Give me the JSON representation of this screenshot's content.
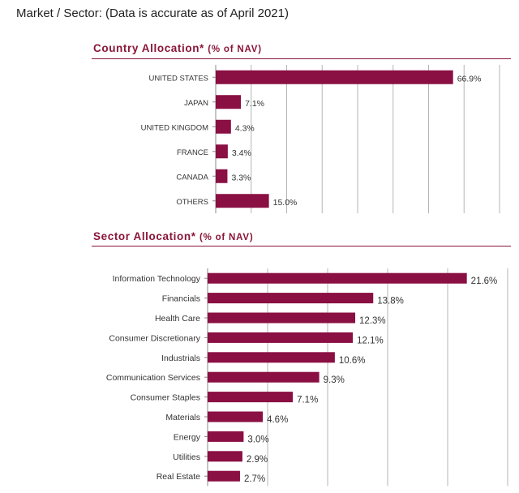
{
  "header": {
    "title": "Market / Sector: (Data is accurate as of April 2021)"
  },
  "colors": {
    "bar": "#8a0f43",
    "heading": "#8a1538",
    "grid": "#999999"
  },
  "chart_data": [
    {
      "type": "bar",
      "orientation": "horizontal",
      "title": "Country Allocation*",
      "title_unit": "(% of NAV)",
      "categories": [
        "UNITED STATES",
        "JAPAN",
        "UNITED KINGDOM",
        "FRANCE",
        "CANADA",
        "OTHERS"
      ],
      "values": [
        66.9,
        7.1,
        4.3,
        3.4,
        3.3,
        15.0
      ],
      "value_labels": [
        "66.9%",
        "7.1%",
        "4.3%",
        "3.4%",
        "3.3%",
        "15.0%"
      ],
      "xlim": [
        0,
        80
      ],
      "grid": true
    },
    {
      "type": "bar",
      "orientation": "horizontal",
      "title": "Sector Allocation*",
      "title_unit": "(% of NAV)",
      "categories": [
        "Information Technology",
        "Financials",
        "Health Care",
        "Consumer Discretionary",
        "Industrials",
        "Communication Services",
        "Consumer Staples",
        "Materials",
        "Energy",
        "Utilities",
        "Real Estate"
      ],
      "values": [
        21.6,
        13.8,
        12.3,
        12.1,
        10.6,
        9.3,
        7.1,
        4.6,
        3.0,
        2.9,
        2.7
      ],
      "value_labels": [
        "21.6%",
        "13.8%",
        "12.3%",
        "12.1%",
        "10.6%",
        "9.3%",
        "7.1%",
        "4.6%",
        "3.0%",
        "2.9%",
        "2.7%"
      ],
      "xlim": [
        0,
        25
      ],
      "grid": true
    }
  ]
}
